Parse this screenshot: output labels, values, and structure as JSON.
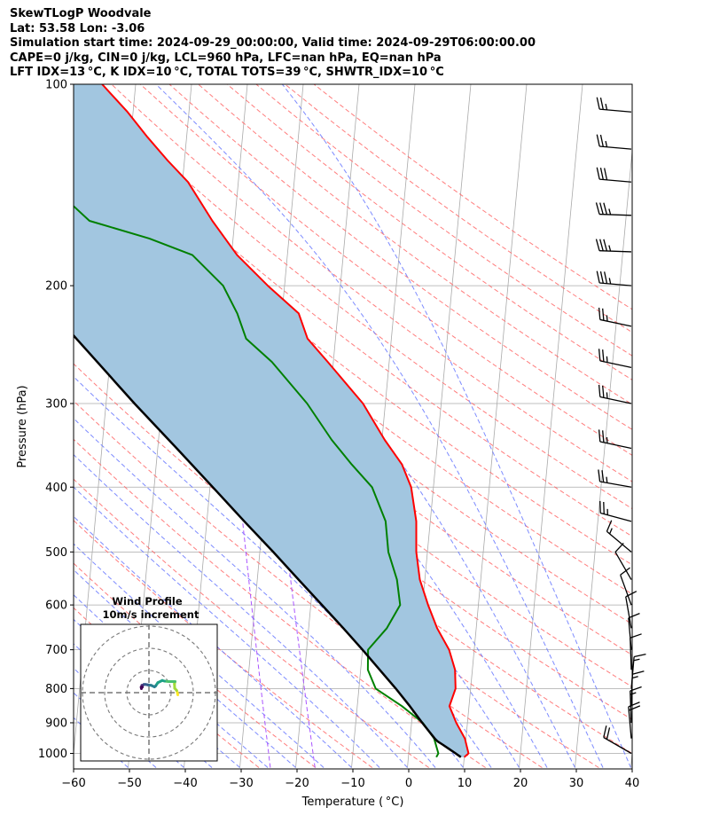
{
  "header": {
    "line1": "SkewTLogP Woodvale",
    "line2": "Lat: 53.58   Lon: -3.06",
    "line3": "Simulation start time: 2024-09-29_00:00:00, Valid time: 2024-09-29T06:00:00.00",
    "line4": "CAPE=0 j/kg, CIN=0 j/kg, LCL=960 hPa, LFC=nan hPa, EQ=nan hPa",
    "line5": "LFT IDX=13 °C, K IDX=10 °C, TOTAL TOTS=39 °C, SHWTR_IDX=10 °C"
  },
  "chart_data": {
    "type": "line",
    "diagram": "skew-T log-P",
    "xlabel": "Temperature ( °C)",
    "ylabel": "Pressure (hPa)",
    "xlim": [
      -60,
      40
    ],
    "ylim": [
      1050,
      100
    ],
    "y_scale": "log",
    "x_ticks": [
      "−60",
      "−50",
      "−40",
      "−30",
      "−20",
      "−10",
      "0",
      "10",
      "20",
      "30",
      "40"
    ],
    "y_ticks": [
      "1000",
      "900",
      "800",
      "700",
      "600",
      "500",
      "400",
      "300",
      "200",
      "100"
    ],
    "grid": true,
    "colors": {
      "temperature": "#ff0000",
      "dewpoint": "#008000",
      "parcel": "#000000",
      "shade": "#a2c6e0",
      "dry_adiabats": "#ff6666",
      "moist_adiabats": "#6677ff",
      "mixing_ratio": "#aa55ff",
      "isotherms": "#aaaaaa",
      "barbs": "#000000"
    },
    "series": [
      {
        "role": "temperature",
        "points": [
          [
            1013,
            10
          ],
          [
            1000,
            10.7
          ],
          [
            950,
            9.8
          ],
          [
            900,
            8
          ],
          [
            850,
            6.5
          ],
          [
            800,
            7.3
          ],
          [
            750,
            6.9
          ],
          [
            700,
            5.5
          ],
          [
            650,
            3
          ],
          [
            600,
            1
          ],
          [
            550,
            -0.9
          ],
          [
            500,
            -2
          ],
          [
            450,
            -2.5
          ],
          [
            400,
            -4
          ],
          [
            370,
            -6
          ],
          [
            340,
            -9.5
          ],
          [
            300,
            -14
          ],
          [
            260,
            -21
          ],
          [
            240,
            -25
          ],
          [
            220,
            -27
          ],
          [
            200,
            -33
          ],
          [
            180,
            -39
          ],
          [
            160,
            -44
          ],
          [
            140,
            -49
          ],
          [
            130,
            -53
          ],
          [
            120,
            -57
          ],
          [
            110,
            -61
          ],
          [
            100,
            -66
          ]
        ]
      },
      {
        "role": "dewpoint",
        "points": [
          [
            1013,
            5
          ],
          [
            1000,
            5.3
          ],
          [
            950,
            4.3
          ],
          [
            900,
            2
          ],
          [
            850,
            -2
          ],
          [
            800,
            -7
          ],
          [
            750,
            -8.7
          ],
          [
            700,
            -9
          ],
          [
            650,
            -6
          ],
          [
            600,
            -4
          ],
          [
            550,
            -5
          ],
          [
            500,
            -7
          ],
          [
            450,
            -8
          ],
          [
            400,
            -11
          ],
          [
            370,
            -15
          ],
          [
            340,
            -19
          ],
          [
            300,
            -24
          ],
          [
            260,
            -31
          ],
          [
            240,
            -36
          ],
          [
            220,
            -38
          ],
          [
            200,
            -41
          ],
          [
            180,
            -47
          ],
          [
            170,
            -55
          ],
          [
            160,
            -66
          ],
          [
            145,
            -72
          ],
          [
            130,
            -76
          ],
          [
            115,
            -81
          ],
          [
            100,
            -88
          ]
        ]
      },
      {
        "role": "parcel",
        "points": [
          [
            1013,
            9.4
          ],
          [
            1000,
            8.4
          ],
          [
            970,
            5.9
          ],
          [
            960,
            5.0
          ],
          [
            950,
            4.4
          ],
          [
            900,
            1.9
          ],
          [
            850,
            -0.6
          ],
          [
            800,
            -3.4
          ],
          [
            750,
            -6.6
          ],
          [
            700,
            -10.0
          ],
          [
            650,
            -13.8
          ],
          [
            600,
            -18.0
          ],
          [
            550,
            -22.6
          ],
          [
            500,
            -27.6
          ],
          [
            450,
            -33.3
          ],
          [
            400,
            -39.5
          ],
          [
            350,
            -46.6
          ],
          [
            300,
            -54.9
          ],
          [
            250,
            -64.3
          ],
          [
            200,
            -75.8
          ],
          [
            150,
            -90.7
          ],
          [
            125,
            -100.6
          ],
          [
            100,
            -112.5
          ]
        ]
      }
    ],
    "wind_barbs": {
      "units": "knots",
      "levels": [
        {
          "p": 1000,
          "dir": 300,
          "spd": 20
        },
        {
          "p": 950,
          "dir": 355,
          "spd": 18
        },
        {
          "p": 900,
          "dir": 358,
          "spd": 16
        },
        {
          "p": 850,
          "dir": 2,
          "spd": 14
        },
        {
          "p": 800,
          "dir": 5,
          "spd": 14
        },
        {
          "p": 750,
          "dir": 358,
          "spd": 12
        },
        {
          "p": 700,
          "dir": 355,
          "spd": 10
        },
        {
          "p": 650,
          "dir": 350,
          "spd": 10
        },
        {
          "p": 600,
          "dir": 340,
          "spd": 10
        },
        {
          "p": 550,
          "dir": 330,
          "spd": 10
        },
        {
          "p": 500,
          "dir": 310,
          "spd": 15
        },
        {
          "p": 450,
          "dir": 285,
          "spd": 25
        },
        {
          "p": 400,
          "dir": 280,
          "spd": 25
        },
        {
          "p": 350,
          "dir": 282,
          "spd": 25
        },
        {
          "p": 300,
          "dir": 282,
          "spd": 25
        },
        {
          "p": 265,
          "dir": 282,
          "spd": 25
        },
        {
          "p": 230,
          "dir": 282,
          "spd": 25
        },
        {
          "p": 200,
          "dir": 275,
          "spd": 35
        },
        {
          "p": 178,
          "dir": 272,
          "spd": 35
        },
        {
          "p": 157,
          "dir": 272,
          "spd": 35
        },
        {
          "p": 140,
          "dir": 275,
          "spd": 30
        },
        {
          "p": 125,
          "dir": 275,
          "spd": 25
        },
        {
          "p": 110,
          "dir": 275,
          "spd": 25
        }
      ]
    },
    "inset": {
      "title": "Wind Profile",
      "subtitle": "10m/s increment",
      "rings": [
        1,
        2,
        3
      ],
      "hodograph_uv": [
        [
          13,
          -1
        ],
        [
          12.8,
          0
        ],
        [
          12.5,
          1
        ],
        [
          11.6,
          2
        ],
        [
          11.5,
          4
        ],
        [
          11.8,
          5
        ],
        [
          10.5,
          5
        ],
        [
          9,
          5
        ],
        [
          7,
          5.2
        ],
        [
          6,
          5.5
        ],
        [
          4,
          4.5
        ],
        [
          3,
          3
        ],
        [
          2.5,
          2.6
        ],
        [
          1,
          3.3
        ],
        [
          -0.5,
          3.5
        ],
        [
          -1.5,
          3.7
        ],
        [
          -2.3,
          3.7
        ],
        [
          -2.8,
          3.3
        ],
        [
          -3.2,
          3.3
        ],
        [
          -3.2,
          2.7
        ],
        [
          -3,
          2.5
        ],
        [
          -3.5,
          2.5
        ],
        [
          -3.4,
          1.8
        ]
      ]
    }
  }
}
